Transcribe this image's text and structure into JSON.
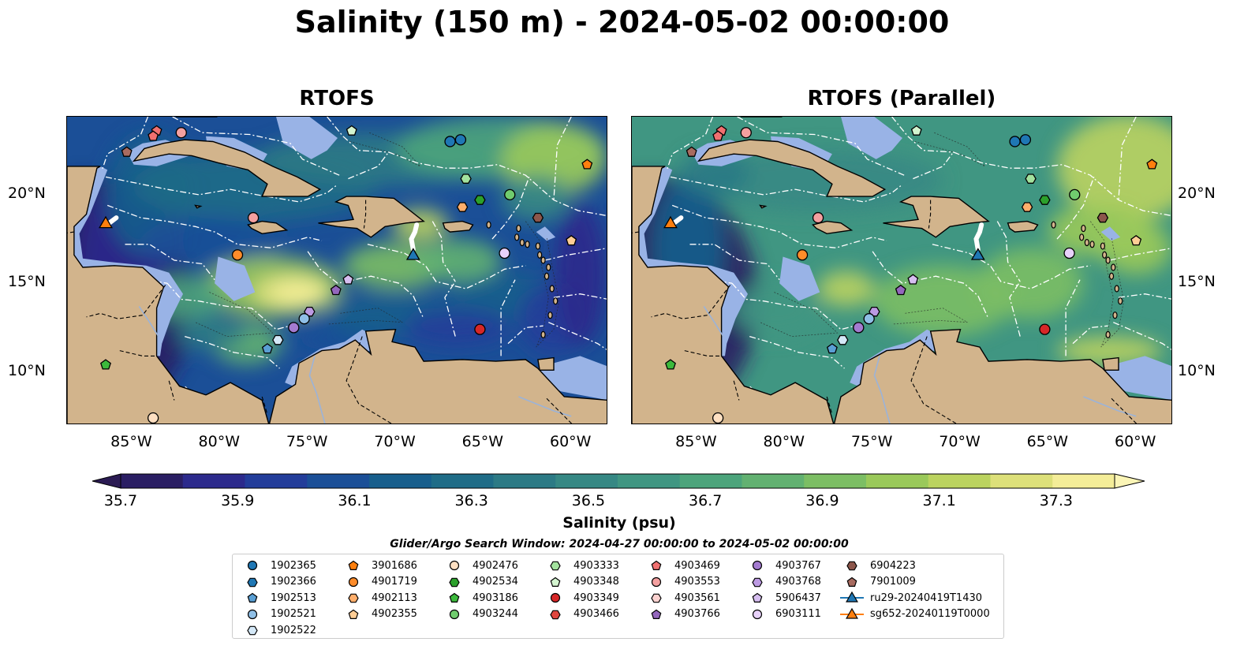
{
  "title": "Salinity (150 m) - 2024-05-02 00:00:00",
  "panels": [
    {
      "title": "RTOFS"
    },
    {
      "title": "RTOFS (Parallel)"
    }
  ],
  "map": {
    "lon_range": [
      -88.7,
      -57.9
    ],
    "lat_range": [
      7.0,
      24.4
    ],
    "lon_ticks": [
      -85,
      -80,
      -75,
      -70,
      -65,
      -60
    ],
    "lon_tick_labels": [
      "85°W",
      "80°W",
      "75°W",
      "70°W",
      "65°W",
      "60°W"
    ],
    "lat_ticks": [
      10,
      15,
      20
    ],
    "lat_tick_labels": [
      "10°N",
      "15°N",
      "20°N"
    ],
    "colors": {
      "land": "#d2b48c",
      "shelf": "#99b3e6",
      "eez_lines": "#ffffff",
      "borders": "#000000"
    }
  },
  "colorbar": {
    "label": "Salinity (psu)",
    "range": [
      35.7,
      37.4
    ],
    "step": 0.1,
    "extend": "both",
    "ticks": [
      "35.7",
      "35.9",
      "36.1",
      "36.3",
      "36.5",
      "36.7",
      "36.9",
      "37.1",
      "37.3"
    ],
    "colors": [
      "#2a1e63",
      "#2c2a8c",
      "#233d9a",
      "#1b4f97",
      "#175e8c",
      "#1f6c87",
      "#2c7a85",
      "#368884",
      "#409682",
      "#4ca47b",
      "#62b171",
      "#7cbe64",
      "#9ac95a",
      "#bbd35f",
      "#dde07a",
      "#f4ed98"
    ],
    "under_color": "#2b1b53",
    "over_color": "#fbf5b6"
  },
  "search_window": "Glider/Argo Search Window: 2024-04-27 00:00:00 to 2024-05-02 00:00:00",
  "legend": [
    {
      "label": "1902365",
      "marker": "circle",
      "color": "#1f77b4"
    },
    {
      "label": "1902366",
      "marker": "hexagon",
      "color": "#1f77b4"
    },
    {
      "label": "1902513",
      "marker": "pentagon",
      "color": "#5a9fd4"
    },
    {
      "label": "1902521",
      "marker": "circle",
      "color": "#8fbfe6"
    },
    {
      "label": "1902522",
      "marker": "hexagon",
      "color": "#d4e8f7"
    },
    {
      "label": "3901686",
      "marker": "pentagon",
      "color": "#ff7f0e"
    },
    {
      "label": "4901719",
      "marker": "circle",
      "color": "#ff8c2a"
    },
    {
      "label": "4902113",
      "marker": "hexagon",
      "color": "#ffae6b"
    },
    {
      "label": "4902355",
      "marker": "pentagon",
      "color": "#ffcd95"
    },
    {
      "label": "4902476",
      "marker": "circle",
      "color": "#ffe0c2"
    },
    {
      "label": "4902534",
      "marker": "hexagon",
      "color": "#2ca02c"
    },
    {
      "label": "4903186",
      "marker": "pentagon",
      "color": "#3cb93c"
    },
    {
      "label": "4903244",
      "marker": "circle",
      "color": "#70cc6e"
    },
    {
      "label": "4903333",
      "marker": "hexagon",
      "color": "#a3e29e"
    },
    {
      "label": "4903348",
      "marker": "pentagon",
      "color": "#d4f5d0"
    },
    {
      "label": "4903349",
      "marker": "circle",
      "color": "#d62728"
    },
    {
      "label": "4903466",
      "marker": "hexagon",
      "color": "#e0463f"
    },
    {
      "label": "4903469",
      "marker": "pentagon",
      "color": "#f07070"
    },
    {
      "label": "4903553",
      "marker": "circle",
      "color": "#f4a0a0"
    },
    {
      "label": "4903561",
      "marker": "hexagon",
      "color": "#fcd2d0"
    },
    {
      "label": "4903766",
      "marker": "pentagon",
      "color": "#9467bd"
    },
    {
      "label": "4903767",
      "marker": "circle",
      "color": "#a47bd0"
    },
    {
      "label": "4903768",
      "marker": "hexagon",
      "color": "#bc9ae2"
    },
    {
      "label": "5906437",
      "marker": "pentagon",
      "color": "#d6bef0"
    },
    {
      "label": "6903111",
      "marker": "circle",
      "color": "#e8d2fa"
    },
    {
      "label": "6904223",
      "marker": "hexagon",
      "color": "#8c564b"
    },
    {
      "label": "7901009",
      "marker": "pentagon",
      "color": "#a86b60"
    },
    {
      "label": "ru29-20240419T1430",
      "marker": "triangle-line",
      "color": "#1f77b4"
    },
    {
      "label": "sg652-20240119T0000",
      "marker": "triangle-line",
      "color": "#ff7f0e"
    }
  ],
  "observations": [
    {
      "id": "1902365",
      "lon": -66.9,
      "lat": 23.0
    },
    {
      "id": "1902365",
      "lon": -66.3,
      "lat": 23.1
    },
    {
      "id": "4902534",
      "lon": -65.2,
      "lat": 19.7
    },
    {
      "id": "4903333",
      "lon": -66.0,
      "lat": 20.9
    },
    {
      "id": "4903244",
      "lon": -63.5,
      "lat": 20.0
    },
    {
      "id": "4902113",
      "lon": -66.2,
      "lat": 19.3
    },
    {
      "id": "6904223",
      "lon": -61.9,
      "lat": 18.7
    },
    {
      "id": "3901686",
      "lon": -59.1,
      "lat": 21.7
    },
    {
      "id": "4902355",
      "lon": -60.0,
      "lat": 17.4
    },
    {
      "id": "6903111",
      "lon": -63.8,
      "lat": 16.7
    },
    {
      "id": "4903349",
      "lon": -65.2,
      "lat": 12.4
    },
    {
      "id": "4903348",
      "lon": -72.5,
      "lat": 23.6
    },
    {
      "id": "4903469",
      "lon": -83.6,
      "lat": 23.6
    },
    {
      "id": "4903469",
      "lon": -83.8,
      "lat": 23.3
    },
    {
      "id": "4903553",
      "lon": -82.2,
      "lat": 23.5
    },
    {
      "id": "7901009",
      "lon": -85.3,
      "lat": 22.4
    },
    {
      "id": "4903553",
      "lon": -78.1,
      "lat": 18.7
    },
    {
      "id": "4901719",
      "lon": -79.0,
      "lat": 16.6
    },
    {
      "id": "5906437",
      "lon": -72.7,
      "lat": 15.2
    },
    {
      "id": "4903766",
      "lon": -73.4,
      "lat": 14.6
    },
    {
      "id": "4903768",
      "lon": -74.9,
      "lat": 13.4
    },
    {
      "id": "4903767",
      "lon": -75.8,
      "lat": 12.5
    },
    {
      "id": "1902521",
      "lon": -75.2,
      "lat": 13.0
    },
    {
      "id": "1902522",
      "lon": -76.7,
      "lat": 11.8
    },
    {
      "id": "1902513",
      "lon": -77.3,
      "lat": 11.3
    },
    {
      "id": "4903186",
      "lon": -86.5,
      "lat": 10.4
    },
    {
      "id": "4902476",
      "lon": -83.8,
      "lat": 7.4
    }
  ],
  "gliders": [
    {
      "id": "ru29-20240419T1430",
      "lon": -69.0,
      "lat": 16.5,
      "track": [
        [
          -68.8,
          18.3
        ],
        [
          -68.9,
          17.9
        ],
        [
          -69.1,
          17.5
        ],
        [
          -69.0,
          16.9
        ]
      ]
    },
    {
      "id": "sg652-20240119T0000",
      "lon": -86.5,
      "lat": 18.3,
      "track": [
        [
          -86.3,
          18.4
        ],
        [
          -85.9,
          18.7
        ]
      ]
    }
  ]
}
